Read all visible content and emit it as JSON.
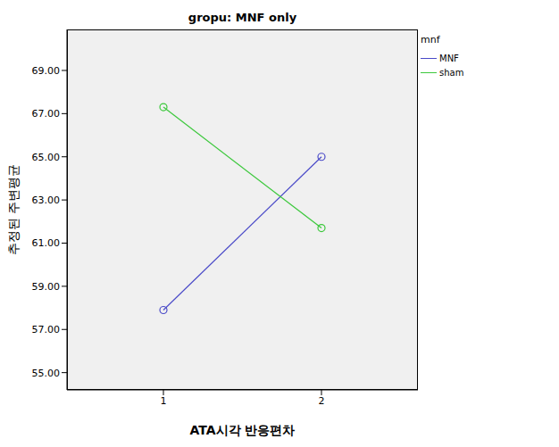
{
  "chart_data": {
    "type": "line",
    "title": "gropu: MNF only",
    "x_label": "ATA시각 반응편차",
    "y_label": "추정된 주변평균",
    "legend_title": "mnf",
    "categories": [
      "1",
      "2"
    ],
    "series": [
      {
        "name": "MNF",
        "color": "#4a4ac8",
        "values": [
          57.9,
          65.0
        ]
      },
      {
        "name": "sham",
        "color": "#3cc83c",
        "values": [
          67.3,
          61.7
        ]
      }
    ],
    "ylim": [
      54.2,
      70.9
    ],
    "yticks": [
      {
        "value": 55,
        "label": "55.00"
      },
      {
        "value": 57,
        "label": "57.00"
      },
      {
        "value": 59,
        "label": "59.00"
      },
      {
        "value": 61,
        "label": "61.00"
      },
      {
        "value": 63,
        "label": "63.00"
      },
      {
        "value": 65,
        "label": "65.00"
      },
      {
        "value": 67,
        "label": "67.00"
      },
      {
        "value": 69,
        "label": "69.00"
      }
    ],
    "grid": false,
    "marker": "circle",
    "legend": "right"
  }
}
